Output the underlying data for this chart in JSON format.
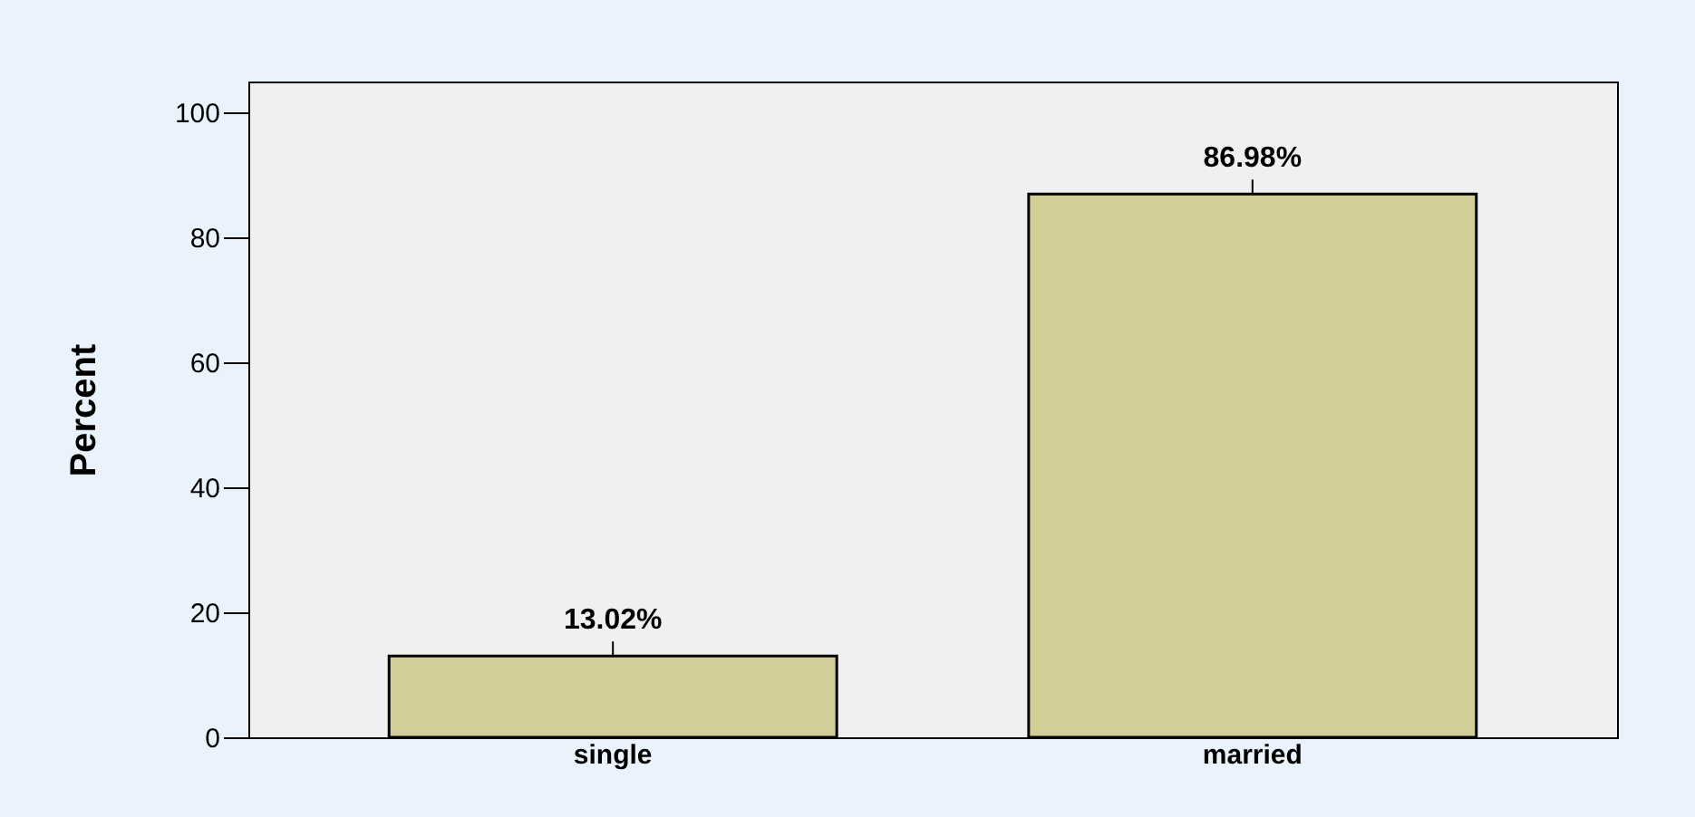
{
  "chart_data": {
    "type": "bar",
    "ylabel": "Percent",
    "categories": [
      "single",
      "married"
    ],
    "values": [
      13.02,
      86.98
    ],
    "value_labels": [
      "13.02%",
      "86.98%"
    ],
    "color": "#d3cd98",
    "ylim": [
      0,
      105
    ],
    "yticks": [
      0,
      20,
      40,
      60,
      80,
      100
    ],
    "grid": false
  }
}
